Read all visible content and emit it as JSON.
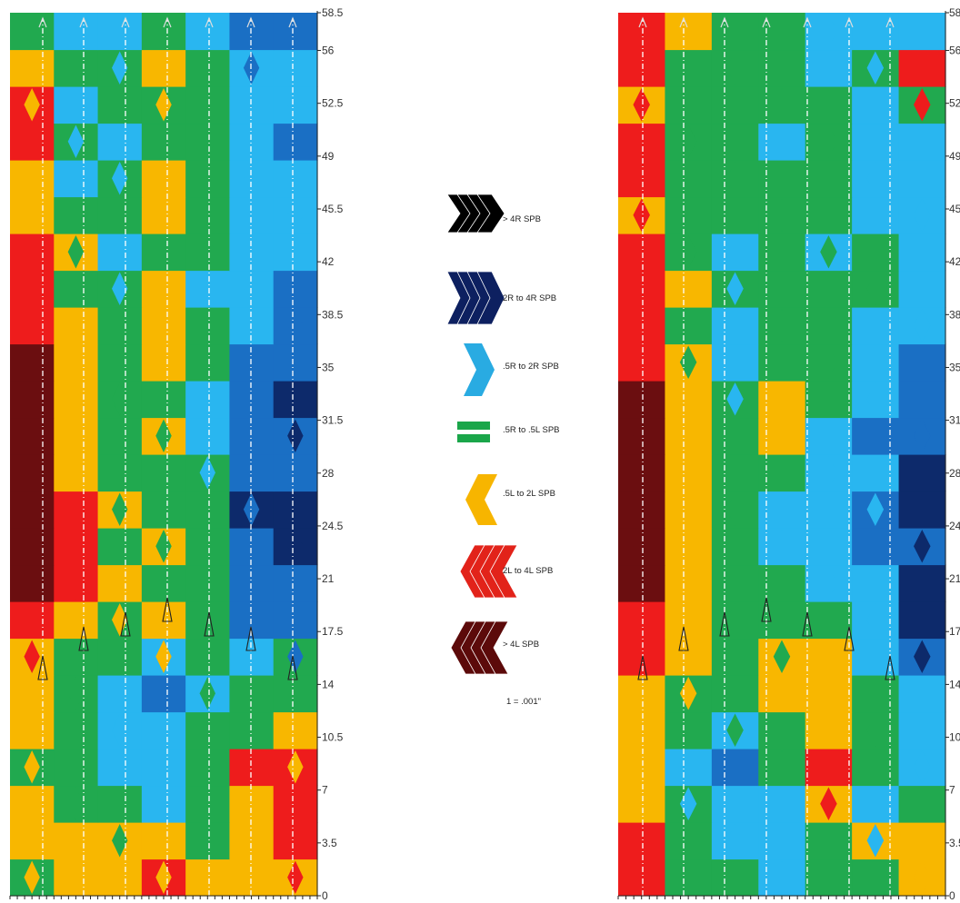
{
  "chart_data": [
    {
      "type": "heatmap",
      "title": "",
      "xlabel": "",
      "ylabel": "",
      "ylim": [
        0,
        58.5
      ],
      "yticks": [
        "0",
        "3.5",
        "7",
        "10.5",
        "14",
        "17.5",
        "21",
        "24.5",
        "28",
        "31.5",
        "35",
        "38.5",
        "42",
        "45.5",
        "49",
        "52.5",
        "56",
        "58.5"
      ],
      "columns": 7,
      "rows": [
        [
          4,
          5,
          5,
          6,
          5,
          5,
          5
        ],
        [
          5,
          5,
          5,
          5,
          4,
          5,
          6
        ],
        [
          5,
          4,
          4,
          3,
          4,
          5,
          6
        ],
        [
          4,
          4,
          3,
          3,
          4,
          6,
          6
        ],
        [
          5,
          4,
          3,
          3,
          4,
          4,
          5
        ],
        [
          5,
          4,
          3,
          2,
          3,
          4,
          4
        ],
        [
          5,
          4,
          4,
          3,
          4,
          3,
          4
        ],
        [
          6,
          5,
          4,
          5,
          4,
          2,
          2
        ],
        [
          7,
          6,
          5,
          4,
          4,
          2,
          2
        ],
        [
          7,
          6,
          4,
          5,
          4,
          2,
          1
        ],
        [
          7,
          6,
          5,
          4,
          4,
          1,
          1
        ],
        [
          7,
          5,
          4,
          4,
          4,
          2,
          2
        ],
        [
          7,
          5,
          4,
          5,
          3,
          2,
          2
        ],
        [
          7,
          5,
          4,
          4,
          3,
          2,
          1
        ],
        [
          7,
          5,
          4,
          5,
          4,
          2,
          2
        ],
        [
          6,
          5,
          4,
          5,
          4,
          3,
          2
        ],
        [
          6,
          4,
          4,
          5,
          3,
          3,
          2
        ],
        [
          6,
          5,
          3,
          4,
          4,
          3,
          3
        ],
        [
          5,
          4,
          4,
          5,
          4,
          3,
          3
        ],
        [
          5,
          3,
          4,
          5,
          4,
          3,
          3
        ],
        [
          6,
          4,
          3,
          4,
          4,
          3,
          2
        ],
        [
          6,
          3,
          4,
          4,
          4,
          3,
          3
        ],
        [
          5,
          4,
          4,
          5,
          4,
          3,
          3
        ],
        [
          4,
          3,
          3,
          4,
          3,
          2,
          2
        ]
      ],
      "arrow_row": 4
    },
    {
      "type": "heatmap",
      "title": "",
      "xlabel": "",
      "ylabel": "",
      "ylim": [
        0,
        58.5
      ],
      "yticks": [
        "0",
        "3.5",
        "7",
        "10.5",
        "14",
        "17.5",
        "21",
        "24.5",
        "28",
        "31.5",
        "35",
        "38.5",
        "42",
        "45.5",
        "49",
        "52.5",
        "56",
        "58.5"
      ],
      "columns": 7,
      "rows": [
        [
          6,
          4,
          4,
          3,
          4,
          4,
          5
        ],
        [
          6,
          4,
          3,
          3,
          4,
          5,
          5
        ],
        [
          5,
          4,
          3,
          3,
          5,
          3,
          4
        ],
        [
          5,
          3,
          2,
          4,
          6,
          4,
          3
        ],
        [
          5,
          4,
          3,
          4,
          5,
          4,
          3
        ],
        [
          5,
          4,
          4,
          5,
          5,
          4,
          3
        ],
        [
          6,
          5,
          4,
          5,
          5,
          3,
          2
        ],
        [
          6,
          5,
          4,
          4,
          4,
          3,
          1
        ],
        [
          7,
          5,
          4,
          4,
          3,
          3,
          1
        ],
        [
          7,
          5,
          4,
          3,
          3,
          2,
          2
        ],
        [
          7,
          5,
          4,
          3,
          3,
          2,
          1
        ],
        [
          7,
          5,
          4,
          4,
          3,
          3,
          1
        ],
        [
          7,
          5,
          4,
          5,
          3,
          2,
          2
        ],
        [
          7,
          5,
          4,
          5,
          4,
          3,
          2
        ],
        [
          6,
          5,
          3,
          4,
          4,
          3,
          2
        ],
        [
          6,
          4,
          3,
          4,
          4,
          3,
          3
        ],
        [
          6,
          5,
          4,
          4,
          4,
          4,
          3
        ],
        [
          6,
          4,
          3,
          4,
          3,
          4,
          3
        ],
        [
          5,
          4,
          4,
          4,
          4,
          3,
          3
        ],
        [
          6,
          4,
          4,
          4,
          4,
          3,
          3
        ],
        [
          6,
          4,
          4,
          3,
          4,
          3,
          3
        ],
        [
          5,
          4,
          4,
          4,
          4,
          3,
          4
        ],
        [
          6,
          4,
          4,
          4,
          3,
          4,
          6
        ],
        [
          6,
          5,
          4,
          4,
          3,
          3,
          3
        ]
      ],
      "arrow_row": 4
    }
  ],
  "legend": {
    "items": [
      {
        "label": "> 4R SPB",
        "color": "#000000",
        "shape": "chevron-right"
      },
      {
        "label": "2R to 4R SPB",
        "color": "#0d2060",
        "shape": "chevron-right"
      },
      {
        "label": ".5R to 2R SPB",
        "color": "#29abe2",
        "shape": "chevron-right-single"
      },
      {
        "label": ".5R to .5L SPB",
        "color": "#1aa64a",
        "shape": "bars"
      },
      {
        "label": ".5L to 2L SPB",
        "color": "#f7b500",
        "shape": "chevron-left-double"
      },
      {
        "label": "2L to 4L SPB",
        "color": "#e2231a",
        "shape": "chevron-left"
      },
      {
        "label": "> 4L SPB",
        "color": "#5c0a0a",
        "shape": "chevron-left"
      }
    ],
    "footnote": "1 = .001\""
  },
  "palette": {
    "1": "#0d2a6b",
    "2": "#1a6fc4",
    "3": "#29b6f0",
    "4": "#21a94f",
    "5": "#f8b700",
    "6": "#ee1c1c",
    "7": "#6b0e10"
  }
}
